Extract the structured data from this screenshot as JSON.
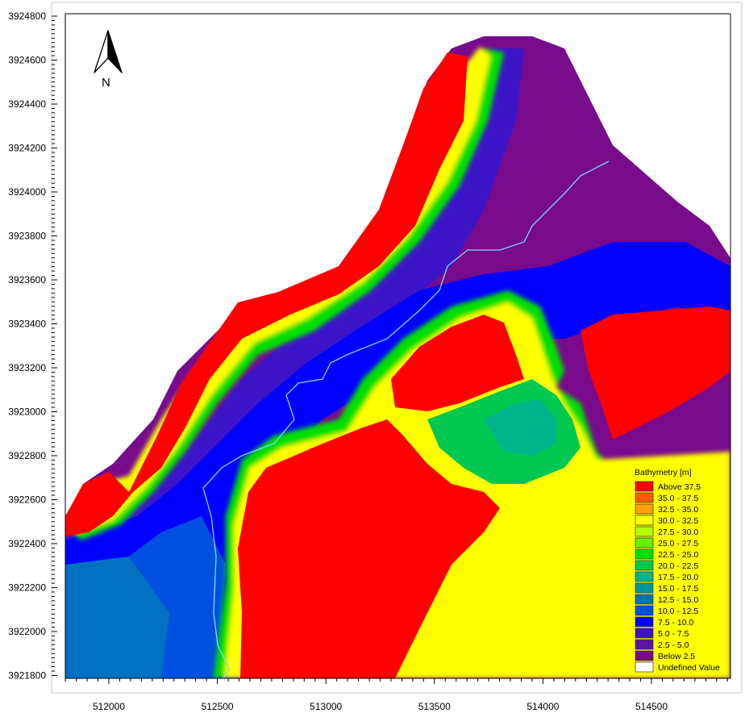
{
  "north_arrow": {
    "label": "N"
  },
  "axes": {
    "x_ticks": [
      "512000",
      "512500",
      "513000",
      "513500",
      "514000",
      "514500"
    ],
    "y_ticks": [
      "3924800",
      "3924600",
      "3924400",
      "3924200",
      "3924000",
      "3923800",
      "3923600",
      "3923400",
      "3923200",
      "3923000",
      "3922800",
      "3922600",
      "3922400",
      "3922200",
      "3922000",
      "3921800"
    ]
  },
  "legend": {
    "title": "Bathymetry [m]",
    "items": [
      {
        "label": "Above 37.5",
        "color": "#ff0000"
      },
      {
        "label": "35.0 - 37.5",
        "color": "#ff5a00"
      },
      {
        "label": "32.5 - 35.0",
        "color": "#ffa000"
      },
      {
        "label": "30.0 - 32.5",
        "color": "#ffff00"
      },
      {
        "label": "27.5 - 30.0",
        "color": "#b4ff00"
      },
      {
        "label": "25.0 - 27.5",
        "color": "#64f000"
      },
      {
        "label": "22.5 - 25.0",
        "color": "#00e000"
      },
      {
        "label": "20.0 - 22.5",
        "color": "#00c850"
      },
      {
        "label": "17.5 - 20.0",
        "color": "#00b48c"
      },
      {
        "label": "15.0 - 17.5",
        "color": "#0096a0"
      },
      {
        "label": "12.5 - 15.0",
        "color": "#0070c0"
      },
      {
        "label": "10.0 - 12.5",
        "color": "#0050e0"
      },
      {
        "label": "7.5 - 10.0",
        "color": "#0000ff"
      },
      {
        "label": "5.0 -  7.5",
        "color": "#3c14c8"
      },
      {
        "label": "2.5 -  5.0",
        "color": "#5a14a0"
      },
      {
        "label": "Below   2.5",
        "color": "#780a8c"
      },
      {
        "label": "Undefined Value",
        "color": "#ffffff"
      }
    ]
  }
}
